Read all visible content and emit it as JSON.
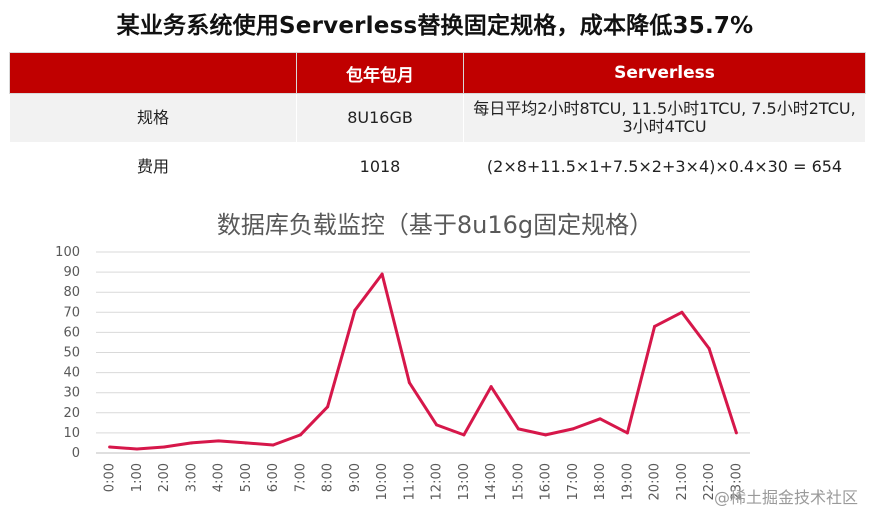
{
  "headline": "某业务系统使用Serverless替换固定规格，成本降低35.7%",
  "table": {
    "headers": [
      "",
      "包年包月",
      "Serverless"
    ],
    "rows": [
      [
        "规格",
        "8U16GB",
        "每日平均2小时8TCU, 11.5小时1TCU, 7.5小时2TCU, 3小时4TCU"
      ],
      [
        "费用",
        "1018",
        "(2×8+11.5×1+7.5×2+3×4)×0.4×30 = 654"
      ]
    ]
  },
  "chart_data": {
    "type": "line",
    "title": "数据库负载监控（基于8u16g固定规格）",
    "categories": [
      "0:00",
      "1:00",
      "2:00",
      "3:00",
      "4:00",
      "5:00",
      "6:00",
      "7:00",
      "8:00",
      "9:00",
      "10:00",
      "11:00",
      "12:00",
      "13:00",
      "14:00",
      "15:00",
      "16:00",
      "17:00",
      "18:00",
      "19:00",
      "20:00",
      "21:00",
      "22:00",
      "23:00"
    ],
    "values": [
      3,
      2,
      3,
      5,
      6,
      5,
      4,
      9,
      23,
      71,
      89,
      35,
      14,
      9,
      33,
      12,
      9,
      12,
      17,
      10,
      63,
      70,
      52,
      10
    ],
    "ylim": [
      0,
      100
    ],
    "yticks": [
      0,
      10,
      20,
      30,
      40,
      50,
      60,
      70,
      80,
      90,
      100
    ],
    "grid": true,
    "line_color": "#d6174a"
  },
  "watermark": "@稀土掘金技术社区"
}
